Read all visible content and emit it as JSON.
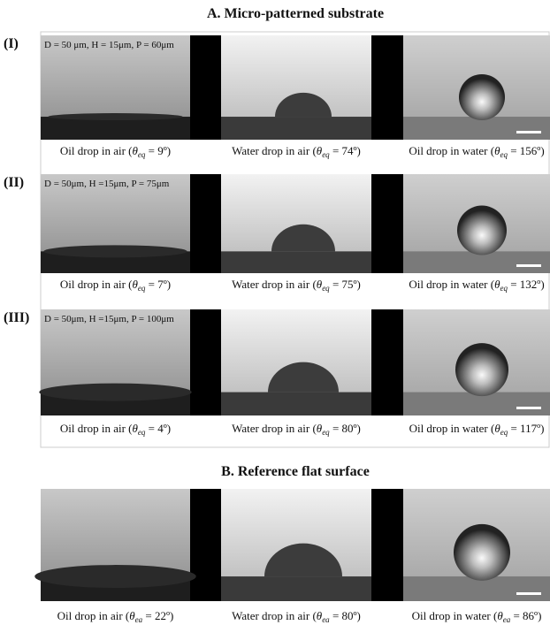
{
  "section_a": {
    "title": "A.   Micro-patterned substrate",
    "rows": [
      {
        "label": "(I)",
        "params": "D = 50 μm, H = 15μm, P = 60μm",
        "captions": [
          {
            "lead": "Oil drop in air (",
            "symbol": "θ",
            "sub": "eq",
            "tail": " = 9º)"
          },
          {
            "lead": "Water drop in air (",
            "symbol": "θ",
            "sub": "eq",
            "tail": " = 74º)"
          },
          {
            "lead": "Oil drop in water (",
            "symbol": "θ",
            "sub": "eq",
            "tail": " = 156º)"
          }
        ]
      },
      {
        "label": "(II)",
        "params": "D = 50μm, H =15μm, P = 75μm",
        "captions": [
          {
            "lead": "Oil drop in air (",
            "symbol": "θ",
            "sub": "eq",
            "tail": " = 7º)"
          },
          {
            "lead": "Water drop in air (",
            "symbol": "θ",
            "sub": "eq",
            "tail": " = 75º)"
          },
          {
            "lead": "Oil drop in water (",
            "symbol": "θ",
            "sub": "eq",
            "tail": " = 132º)"
          }
        ]
      },
      {
        "label": "(III)",
        "params": "D = 50μm, H =15μm, P = 100μm",
        "captions": [
          {
            "lead": "Oil drop in air (",
            "symbol": "θ",
            "sub": "eq",
            "tail": " = 4º)"
          },
          {
            "lead": "Water drop in air (",
            "symbol": "θ",
            "sub": "eq",
            "tail": " = 80º)"
          },
          {
            "lead": "Oil drop in water (",
            "symbol": "θ",
            "sub": "eq",
            "tail": " = 117º)"
          }
        ]
      }
    ]
  },
  "section_b": {
    "title": "B.   Reference flat surface",
    "captions": [
      {
        "lead": "Oil drop in air (",
        "symbol": "θ",
        "sub": "ea",
        "tail": " = 22º)"
      },
      {
        "lead": "Water drop in air (",
        "symbol": "θ",
        "sub": "ea",
        "tail": " = 80º)"
      },
      {
        "lead": "Oil drop in water (",
        "symbol": "θ",
        "sub": "ea",
        "tail": " = 86º)"
      }
    ]
  }
}
